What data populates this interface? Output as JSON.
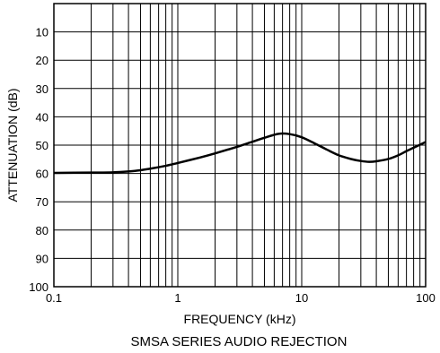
{
  "chart_data": {
    "type": "line",
    "title": "SMSA SERIES AUDIO REJECTION",
    "xlabel": "FREQUENCY (kHz)",
    "ylabel": "ATTENUATION (dB)",
    "x_scale": "log",
    "xlim": [
      0.1,
      100
    ],
    "ylim": [
      0,
      100
    ],
    "y_inverted": true,
    "grid": true,
    "x_tick_labels": [
      "0.1",
      "1",
      "10",
      "100"
    ],
    "y_tick_labels": [
      "10",
      "20",
      "30",
      "40",
      "50",
      "60",
      "70",
      "80",
      "90",
      "100"
    ],
    "series": [
      {
        "x": [
          0.1,
          0.2,
          0.3,
          0.45,
          0.6,
          0.8,
          1,
          1.5,
          2,
          3,
          4,
          5,
          6.5,
          8,
          10,
          13,
          16,
          20,
          25,
          30,
          35,
          40,
          50,
          60,
          70,
          80,
          100
        ],
        "y": [
          59.8,
          59.7,
          59.6,
          59.1,
          58.3,
          57.3,
          56.3,
          54.4,
          52.9,
          50.6,
          48.8,
          47.4,
          46.0,
          46.1,
          47.2,
          49.6,
          51.6,
          53.6,
          54.9,
          55.6,
          55.9,
          55.7,
          54.9,
          53.6,
          52.1,
          50.9,
          48.9
        ]
      }
    ]
  }
}
